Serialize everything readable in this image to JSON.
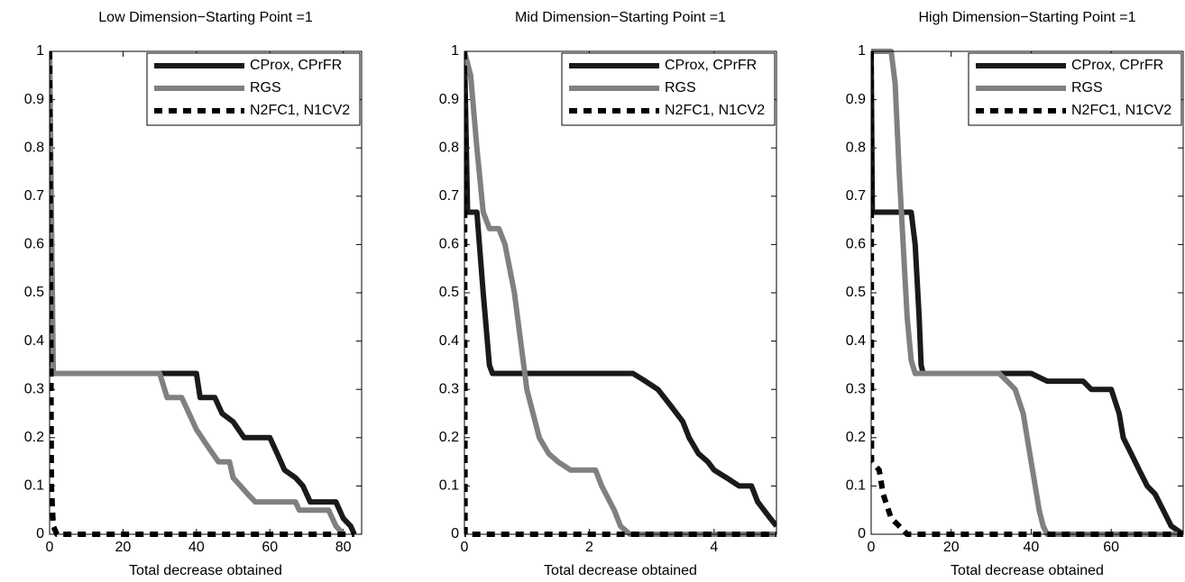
{
  "chart_data": [
    {
      "type": "line",
      "title": "Low Dimension−Starting Point =1",
      "xlabel": "Total decrease obtained",
      "xlim": [
        0,
        85
      ],
      "xticks": [
        0,
        20,
        40,
        60,
        80
      ],
      "ylim": [
        0,
        1
      ],
      "yticks": [
        0,
        0.1,
        0.2,
        0.3,
        0.4,
        0.5,
        0.6,
        0.7,
        0.8,
        0.9,
        1
      ],
      "legend": "upper right",
      "series": [
        {
          "name": "CProx, CPrFR",
          "color": "#1a1a1a",
          "style": "solid",
          "x": [
            0,
            0.5,
            1,
            40,
            41,
            45,
            47,
            50,
            53,
            60,
            62,
            64,
            67,
            69,
            71,
            78,
            80,
            82,
            83
          ],
          "values": [
            1,
            0.4,
            0.333,
            0.333,
            0.283,
            0.283,
            0.25,
            0.233,
            0.2,
            0.2,
            0.167,
            0.133,
            0.117,
            0.1,
            0.067,
            0.067,
            0.033,
            0.017,
            0
          ]
        },
        {
          "name": "RGS",
          "color": "#808080",
          "style": "solid",
          "x": [
            0,
            1,
            30,
            32,
            36,
            38,
            40,
            43,
            46,
            49,
            50,
            52,
            54,
            56,
            67,
            68,
            76,
            78,
            80
          ],
          "values": [
            1,
            0.333,
            0.333,
            0.283,
            0.283,
            0.25,
            0.217,
            0.183,
            0.15,
            0.15,
            0.117,
            0.1,
            0.083,
            0.067,
            0.067,
            0.05,
            0.05,
            0.017,
            0
          ]
        },
        {
          "name": "N2FC1, N1CV2",
          "color": "#000000",
          "style": "dashed",
          "x": [
            0,
            0.5,
            1,
            2,
            83
          ],
          "values": [
            1,
            0.1,
            0.017,
            0,
            0
          ]
        }
      ]
    },
    {
      "type": "line",
      "title": "Mid Dimension−Starting Point =1",
      "xlabel": "Total decrease obtained",
      "xlim": [
        0,
        5
      ],
      "xticks": [
        0,
        2,
        4
      ],
      "ylim": [
        0,
        1
      ],
      "yticks": [
        0,
        0.1,
        0.2,
        0.3,
        0.4,
        0.5,
        0.6,
        0.7,
        0.8,
        0.9,
        1
      ],
      "legend": "upper right",
      "series": [
        {
          "name": "CProx, CPrFR",
          "color": "#1a1a1a",
          "style": "solid",
          "x": [
            0,
            0.05,
            0.2,
            0.3,
            0.4,
            0.45,
            2.7,
            2.9,
            3.1,
            3.3,
            3.5,
            3.6,
            3.75,
            3.9,
            4.0,
            4.2,
            4.4,
            4.6,
            4.7,
            4.9,
            5
          ],
          "values": [
            1,
            0.667,
            0.667,
            0.5,
            0.35,
            0.333,
            0.333,
            0.317,
            0.3,
            0.267,
            0.233,
            0.2,
            0.167,
            0.15,
            0.133,
            0.117,
            0.1,
            0.1,
            0.067,
            0.033,
            0.017
          ]
        },
        {
          "name": "RGS",
          "color": "#808080",
          "style": "solid",
          "x": [
            0,
            0.1,
            0.2,
            0.3,
            0.4,
            0.55,
            0.65,
            0.8,
            0.9,
            1.0,
            1.1,
            1.2,
            1.35,
            1.5,
            1.7,
            2.1,
            2.2,
            2.4,
            2.5,
            2.65,
            5
          ],
          "values": [
            1,
            0.95,
            0.8,
            0.667,
            0.633,
            0.633,
            0.6,
            0.5,
            0.4,
            0.3,
            0.25,
            0.2,
            0.167,
            0.15,
            0.133,
            0.133,
            0.1,
            0.05,
            0.017,
            0,
            0
          ]
        },
        {
          "name": "N2FC1, N1CV2",
          "color": "#000000",
          "style": "dashed",
          "x": [
            0,
            0.01,
            5
          ],
          "values": [
            1,
            0,
            0
          ]
        }
      ]
    },
    {
      "type": "line",
      "title": "High Dimension−Starting Point =1",
      "xlabel": "Total decrease obtained",
      "xlim": [
        0,
        78
      ],
      "xticks": [
        0,
        20,
        40,
        60
      ],
      "ylim": [
        0,
        1
      ],
      "yticks": [
        0,
        0.1,
        0.2,
        0.3,
        0.4,
        0.5,
        0.6,
        0.7,
        0.8,
        0.9,
        1
      ],
      "legend": "upper right",
      "series": [
        {
          "name": "CProx, CPrFR",
          "color": "#1a1a1a",
          "style": "solid",
          "x": [
            0,
            0.3,
            10,
            11,
            12,
            12.5,
            13,
            40,
            44,
            53,
            55,
            60,
            62,
            63,
            65,
            67,
            69,
            71,
            73,
            75,
            78
          ],
          "values": [
            1,
            0.667,
            0.667,
            0.6,
            0.45,
            0.35,
            0.333,
            0.333,
            0.317,
            0.317,
            0.3,
            0.3,
            0.25,
            0.2,
            0.167,
            0.133,
            0.1,
            0.083,
            0.05,
            0.017,
            0
          ]
        },
        {
          "name": "RGS",
          "color": "#808080",
          "style": "solid",
          "x": [
            0,
            5,
            6,
            7,
            8,
            9,
            10,
            11,
            32,
            34,
            36,
            38,
            39,
            40,
            41,
            42,
            43,
            44,
            78
          ],
          "values": [
            1,
            1,
            0.933,
            0.75,
            0.6,
            0.45,
            0.36,
            0.333,
            0.333,
            0.317,
            0.3,
            0.25,
            0.2,
            0.15,
            0.1,
            0.05,
            0.017,
            0,
            0
          ]
        },
        {
          "name": "N2FC1, N1CV2",
          "color": "#000000",
          "style": "dashed",
          "x": [
            0,
            0.1,
            2,
            3,
            5,
            7,
            9,
            78
          ],
          "values": [
            1,
            0.15,
            0.133,
            0.083,
            0.033,
            0.017,
            0,
            0
          ]
        }
      ]
    }
  ]
}
